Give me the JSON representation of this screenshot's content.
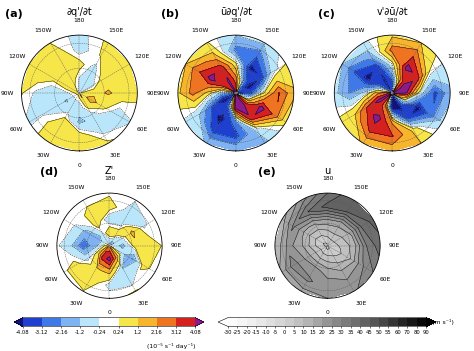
{
  "chart_data": [
    {
      "type": "contour",
      "label": "(a)",
      "title": "∂q'/∂t",
      "lon": [
        0,
        30,
        60,
        90,
        120,
        150,
        180,
        210,
        240,
        270,
        300,
        330
      ],
      "lat": [
        88,
        72,
        55,
        38,
        20
      ],
      "xticks": [
        0,
        {
          "value": 30,
          "label": "30E"
        },
        {
          "value": 60,
          "label": "60E"
        },
        {
          "value": 90,
          "label": "90E"
        },
        {
          "value": 120,
          "label": "120E"
        },
        {
          "value": 150,
          "label": "150E"
        },
        180,
        {
          "value": 210,
          "label": "150W"
        },
        {
          "value": 240,
          "label": "120W"
        },
        {
          "value": 270,
          "label": "90W"
        },
        {
          "value": 300,
          "label": "60W"
        },
        {
          "value": 330,
          "label": "30W"
        }
      ],
      "ylim": [
        20,
        90
      ],
      "yticks": [
        30,
        60
      ],
      "tick_labels": "x",
      "grid": true,
      "levels": [
        -4.08,
        -3.12,
        -2.16,
        -1.2,
        -0.24,
        0.24,
        1.2,
        2.16,
        3.12,
        4.08
      ],
      "colors": [
        "#12127a",
        "#1f3fcf",
        "#3f78e8",
        "#7fb2f2",
        "#b9e6fa",
        "#ffffff",
        "#f7e64a",
        "#f7b52e",
        "#ee7421",
        "#d62020",
        "#8b1a8c"
      ],
      "values": [
        [
          0.6,
          1.5,
          0.8,
          0.3,
          -0.5,
          -0.8,
          -0.6,
          -0.3,
          0.2,
          0.5,
          0.4,
          0.3
        ],
        [
          -0.8,
          0.5,
          1.6,
          0.9,
          -0.4,
          -1.0,
          -0.3,
          0.7,
          0.9,
          -0.6,
          -1.3,
          -0.9
        ],
        [
          -1.4,
          -0.9,
          0.4,
          1.3,
          0.8,
          -0.5,
          0.6,
          1.1,
          0.5,
          -1.0,
          -0.7,
          0.3
        ],
        [
          0.8,
          -0.5,
          -0.8,
          0.9,
          1.0,
          0.3,
          -0.6,
          0.8,
          1.0,
          -0.4,
          -0.3,
          1.0
        ],
        [
          1.0,
          0.4,
          -0.3,
          0.5,
          0.9,
          0.4,
          -0.5,
          0.2,
          0.8,
          0.3,
          -0.4,
          0.9
        ]
      ]
    },
    {
      "type": "contour",
      "label": "(b)",
      "title": "ū∂q'/∂t",
      "lon": [
        0,
        30,
        60,
        90,
        120,
        150,
        180,
        210,
        240,
        270,
        300,
        330
      ],
      "lat": [
        88,
        72,
        55,
        38,
        20
      ],
      "xticks": [
        0,
        {
          "value": 30,
          "label": "30E"
        },
        {
          "value": 60,
          "label": "60E"
        },
        {
          "value": 90,
          "label": "90E"
        },
        {
          "value": 120,
          "label": "120E"
        },
        {
          "value": 150,
          "label": "150E"
        },
        180,
        {
          "value": 210,
          "label": "150W"
        },
        {
          "value": 240,
          "label": "120W"
        },
        {
          "value": 270,
          "label": "90W"
        },
        {
          "value": 300,
          "label": "60W"
        },
        {
          "value": 330,
          "label": "30W"
        }
      ],
      "ylim": [
        20,
        90
      ],
      "yticks": [
        30,
        60
      ],
      "tick_labels": "x",
      "grid": true,
      "levels": [
        -4.08,
        -3.12,
        -2.16,
        -1.2,
        -0.24,
        0.24,
        1.2,
        2.16,
        3.12,
        4.08
      ],
      "colors": [
        "#12127a",
        "#1f3fcf",
        "#3f78e8",
        "#7fb2f2",
        "#b9e6fa",
        "#ffffff",
        "#f7e64a",
        "#f7b52e",
        "#ee7421",
        "#d62020",
        "#8b1a8c"
      ],
      "values": [
        [
          5.0,
          3.5,
          -2.0,
          -4.5,
          -3.0,
          1.0,
          4.0,
          4.5,
          1.0,
          -3.0,
          -4.5,
          1.5
        ],
        [
          4.5,
          4.8,
          1.0,
          -3.5,
          -4.6,
          -2.0,
          2.5,
          4.2,
          3.5,
          -1.5,
          -4.6,
          -3.0
        ],
        [
          -2.5,
          3.8,
          4.5,
          0.5,
          -3.8,
          -4.4,
          0.5,
          3.6,
          4.4,
          1.0,
          -3.0,
          -4.5
        ],
        [
          -3.5,
          -1.0,
          3.0,
          3.2,
          -0.5,
          -3.0,
          -2.5,
          1.5,
          3.0,
          2.5,
          -1.0,
          -3.6
        ],
        [
          -1.2,
          -1.5,
          0.5,
          1.4,
          0.3,
          -1.0,
          -1.2,
          0.3,
          1.2,
          1.0,
          -0.4,
          -1.3
        ]
      ]
    },
    {
      "type": "contour",
      "label": "(c)",
      "title": "v'∂ū/∂t",
      "lon": [
        0,
        30,
        60,
        90,
        120,
        150,
        180,
        210,
        240,
        270,
        300,
        330
      ],
      "lat": [
        88,
        72,
        55,
        38,
        20
      ],
      "xticks": [
        0,
        {
          "value": 30,
          "label": "30E"
        },
        {
          "value": 60,
          "label": "60E"
        },
        {
          "value": 90,
          "label": "90E"
        },
        {
          "value": 120,
          "label": "120E"
        },
        {
          "value": 150,
          "label": "150E"
        },
        180,
        {
          "value": 210,
          "label": "150W"
        },
        {
          "value": 240,
          "label": "120W"
        },
        {
          "value": 270,
          "label": "90W"
        },
        {
          "value": 300,
          "label": "60W"
        },
        {
          "value": 330,
          "label": "30W"
        }
      ],
      "ylim": [
        20,
        90
      ],
      "yticks": [
        30,
        60
      ],
      "tick_labels": "x",
      "grid": true,
      "levels": [
        -4.08,
        -3.12,
        -2.16,
        -1.2,
        -0.24,
        0.24,
        1.2,
        2.16,
        3.12,
        4.08
      ],
      "colors": [
        "#12127a",
        "#1f3fcf",
        "#3f78e8",
        "#7fb2f2",
        "#b9e6fa",
        "#ffffff",
        "#f7e64a",
        "#f7b52e",
        "#ee7421",
        "#d62020",
        "#8b1a8c"
      ],
      "values": [
        [
          -4.5,
          -3.0,
          2.5,
          4.6,
          3.0,
          -1.5,
          -4.2,
          -4.0,
          -0.5,
          3.2,
          4.4,
          -1.0
        ],
        [
          -4.6,
          -4.4,
          -0.5,
          4.0,
          4.8,
          2.0,
          -2.8,
          -4.3,
          -3.0,
          1.8,
          4.5,
          2.5
        ],
        [
          2.0,
          -3.5,
          -4.6,
          -0.8,
          3.6,
          4.5,
          -0.2,
          -3.8,
          -4.4,
          -1.0,
          3.2,
          4.6
        ],
        [
          3.2,
          1.0,
          -2.8,
          -3.4,
          0.2,
          3.0,
          2.6,
          -1.6,
          -3.2,
          -2.2,
          1.2,
          3.4
        ],
        [
          1.4,
          1.2,
          -0.8,
          -1.5,
          -0.3,
          1.2,
          1.0,
          -0.5,
          -1.2,
          -0.9,
          0.5,
          1.3
        ]
      ]
    },
    {
      "type": "contour",
      "label": "(d)",
      "title": "Z'",
      "lon": [
        0,
        30,
        60,
        90,
        120,
        150,
        180,
        210,
        240,
        270,
        300,
        330
      ],
      "lat": [
        88,
        72,
        55,
        38,
        20
      ],
      "xticks": [
        0,
        {
          "value": 30,
          "label": "30E"
        },
        {
          "value": 60,
          "label": "60E"
        },
        {
          "value": 90,
          "label": "90E"
        },
        {
          "value": 120,
          "label": "120E"
        },
        {
          "value": 150,
          "label": "150E"
        },
        180,
        {
          "value": 210,
          "label": "150W"
        },
        {
          "value": 240,
          "label": "120W"
        },
        {
          "value": 270,
          "label": "90W"
        },
        {
          "value": 300,
          "label": "60W"
        },
        {
          "value": 330,
          "label": "30W"
        }
      ],
      "ylim": [
        20,
        90
      ],
      "yticks": [
        30,
        60
      ],
      "tick_labels": "x",
      "grid": true,
      "levels": [
        -4.08,
        -3.12,
        -2.16,
        -1.2,
        -0.24,
        0.24,
        1.2,
        2.16,
        3.12,
        4.08
      ],
      "colors": [
        "#12127a",
        "#1f3fcf",
        "#3f78e8",
        "#7fb2f2",
        "#b9e6fa",
        "#ffffff",
        "#f7e64a",
        "#f7b52e",
        "#ee7421",
        "#d62020",
        "#8b1a8c"
      ],
      "colorbar": {
        "ticks": [
          -4.08,
          -3.12,
          -2.16,
          -1.2,
          -0.24,
          0.24,
          1.2,
          2.16,
          3.12,
          4.08
        ],
        "label": "(10⁻⁵ s⁻¹ day⁻¹)"
      },
      "values": [
        [
          2.5,
          1.5,
          0.5,
          -0.5,
          -1.5,
          -2.0,
          -1.5,
          -1.0,
          0.3,
          1.0,
          1.8,
          2.8
        ],
        [
          4.5,
          2.0,
          -0.8,
          -1.5,
          -0.5,
          0.8,
          1.2,
          -0.5,
          -2.0,
          -1.5,
          0.5,
          3.5
        ],
        [
          1.5,
          -1.2,
          -2.2,
          0.8,
          1.5,
          -0.6,
          -1.0,
          0.9,
          -1.6,
          -2.8,
          -0.5,
          1.0
        ],
        [
          -0.5,
          -0.8,
          0.6,
          1.0,
          -0.4,
          -0.6,
          0.7,
          0.5,
          -0.3,
          -1.0,
          0.6,
          0.8
        ],
        [
          0.1,
          0.3,
          -0.1,
          0.2,
          0.1,
          -0.2,
          0.1,
          -0.1,
          0.2,
          -0.1,
          0.1,
          0.2
        ]
      ]
    },
    {
      "type": "contour",
      "label": "(e)",
      "title": "u",
      "lon": [
        0,
        30,
        60,
        90,
        120,
        150,
        180,
        210,
        240,
        270,
        300,
        330
      ],
      "lat": [
        88,
        72,
        55,
        38,
        20
      ],
      "xticks": [
        0,
        {
          "value": 30,
          "label": "30E"
        },
        {
          "value": 60,
          "label": "60E"
        },
        {
          "value": 90,
          "label": "90E"
        },
        {
          "value": 120,
          "label": "120E"
        },
        {
          "value": 150,
          "label": "150E"
        },
        180,
        {
          "value": 210,
          "label": "150W"
        },
        {
          "value": 240,
          "label": "120W"
        },
        {
          "value": 270,
          "label": "90W"
        },
        {
          "value": 300,
          "label": "60W"
        },
        {
          "value": 330,
          "label": "30W"
        }
      ],
      "ylim": [
        20,
        90
      ],
      "yticks": [
        30,
        60
      ],
      "tick_labels": "x",
      "grid": true,
      "levels": [
        -30,
        -25,
        -20,
        -15,
        -10,
        -5,
        0,
        5,
        10,
        15,
        20,
        25,
        30,
        35,
        40,
        45,
        50,
        55,
        60,
        70,
        80,
        90
      ],
      "colorbar": {
        "ticks": [
          -30,
          -25,
          -20,
          -15,
          -10,
          -5,
          0,
          5,
          10,
          15,
          20,
          25,
          30,
          35,
          40,
          45,
          50,
          55,
          60,
          70,
          80,
          90
        ],
        "label": "(m s⁻¹)"
      },
      "values": [
        [
          -2,
          -1,
          0,
          1,
          2,
          1,
          0,
          -1,
          -2,
          -1,
          0,
          -1
        ],
        [
          8,
          6,
          4,
          6,
          8,
          10,
          8,
          6,
          5,
          6,
          10,
          9
        ],
        [
          18,
          14,
          10,
          12,
          16,
          18,
          20,
          16,
          14,
          16,
          20,
          22
        ],
        [
          22,
          20,
          24,
          30,
          36,
          40,
          42,
          35,
          26,
          22,
          28,
          26
        ],
        [
          20,
          24,
          30,
          38,
          42,
          45,
          35,
          22,
          12,
          10,
          16,
          18
        ]
      ]
    }
  ]
}
